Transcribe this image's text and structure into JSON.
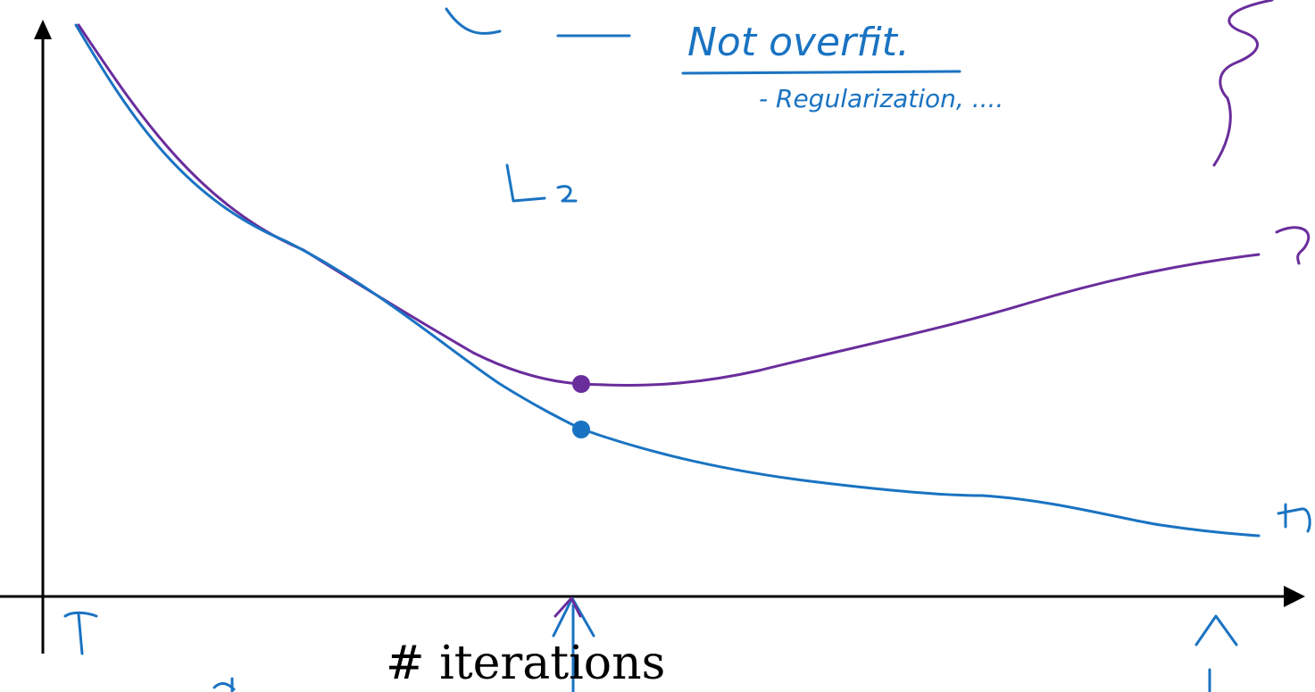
{
  "diagram": {
    "xlabel": "# iterations",
    "notes": {
      "not_overfit": "Not overfit.",
      "regularization": "- Regularization, ....",
      "l2": "L2"
    },
    "colors": {
      "dev_curve": "#6a2d9c",
      "train_curve": "#1a73c2",
      "axes": "#000000"
    }
  }
}
